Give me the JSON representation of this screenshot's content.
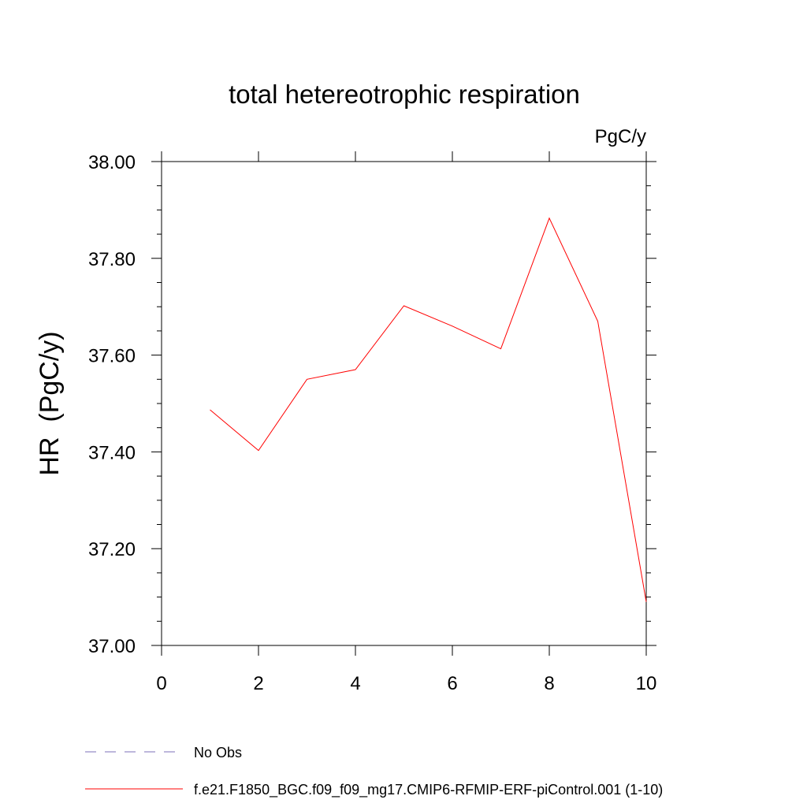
{
  "chart_data": {
    "type": "line",
    "title": "total hetereotrophic respiration",
    "units_label": "PgC/y",
    "xlabel": "",
    "ylabel": "HR  (PgC/y)",
    "xlim": [
      0,
      10
    ],
    "ylim": [
      37.0,
      38.0
    ],
    "x_ticks": [
      0,
      2,
      4,
      6,
      8,
      10
    ],
    "x_tick_labels": [
      "0",
      "2",
      "4",
      "6",
      "8",
      "10"
    ],
    "y_ticks": [
      37.0,
      37.2,
      37.4,
      37.6,
      37.8,
      38.0
    ],
    "y_tick_labels": [
      "37.00",
      "37.20",
      "37.40",
      "37.60",
      "37.80",
      "38.00"
    ],
    "grid": false,
    "series": [
      {
        "name": "f.e21.F1850_BGC.f09_f09_mg17.CMIP6-RFMIP-ERF-piControl.001 (1-10)",
        "color": "#ff0000",
        "x": [
          1,
          2,
          3,
          4,
          5,
          6,
          7,
          8,
          9,
          10
        ],
        "values": [
          37.487,
          37.403,
          37.55,
          37.57,
          37.702,
          37.66,
          37.613,
          37.883,
          37.67,
          37.09
        ]
      }
    ],
    "legend": [
      {
        "label": "No Obs",
        "color": "#7b6fb8",
        "style": "dashed"
      },
      {
        "label": "f.e21.F1850_BGC.f09_f09_mg17.CMIP6-RFMIP-ERF-piControl.001 (1-10)",
        "color": "#ff0000",
        "style": "solid"
      }
    ],
    "legend_position": "bottom-left"
  }
}
